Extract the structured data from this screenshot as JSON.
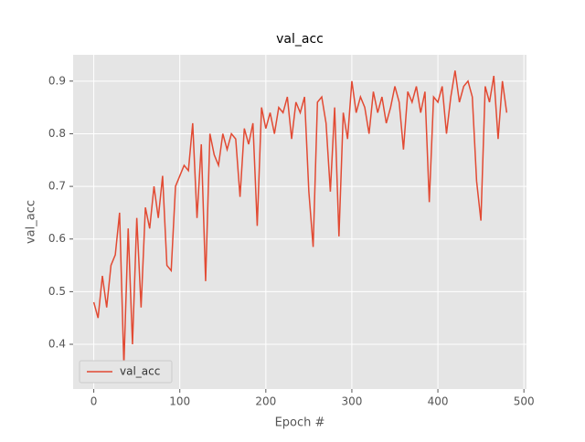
{
  "chart_data": {
    "type": "line",
    "title": "val_acc",
    "x_label": "Epoch #",
    "y_label": "val_acc",
    "x": [
      0,
      5,
      10,
      15,
      20,
      25,
      30,
      35,
      40,
      45,
      50,
      55,
      60,
      65,
      70,
      75,
      80,
      85,
      90,
      95,
      100,
      105,
      110,
      115,
      120,
      125,
      130,
      135,
      140,
      145,
      150,
      155,
      160,
      165,
      170,
      175,
      180,
      185,
      190,
      195,
      200,
      205,
      210,
      215,
      220,
      225,
      230,
      235,
      240,
      245,
      250,
      255,
      260,
      265,
      270,
      275,
      280,
      285,
      290,
      295,
      300,
      305,
      310,
      315,
      320,
      325,
      330,
      335,
      340,
      345,
      350,
      355,
      360,
      365,
      370,
      375,
      380,
      385,
      390,
      395,
      400,
      405,
      410,
      415,
      420,
      425,
      430,
      435,
      440,
      445,
      450,
      455,
      460,
      465,
      470,
      475,
      480
    ],
    "series": [
      {
        "name": "val_acc",
        "color": "#e24a33",
        "values": [
          0.48,
          0.45,
          0.53,
          0.47,
          0.55,
          0.57,
          0.65,
          0.36,
          0.62,
          0.4,
          0.64,
          0.47,
          0.66,
          0.62,
          0.7,
          0.64,
          0.72,
          0.55,
          0.54,
          0.7,
          0.72,
          0.74,
          0.73,
          0.82,
          0.64,
          0.78,
          0.52,
          0.8,
          0.76,
          0.74,
          0.8,
          0.77,
          0.8,
          0.79,
          0.68,
          0.81,
          0.78,
          0.82,
          0.625,
          0.85,
          0.81,
          0.84,
          0.8,
          0.85,
          0.84,
          0.87,
          0.79,
          0.86,
          0.84,
          0.87,
          0.69,
          0.585,
          0.86,
          0.87,
          0.82,
          0.69,
          0.85,
          0.605,
          0.84,
          0.79,
          0.9,
          0.84,
          0.87,
          0.85,
          0.8,
          0.88,
          0.84,
          0.87,
          0.82,
          0.85,
          0.89,
          0.86,
          0.77,
          0.88,
          0.86,
          0.89,
          0.84,
          0.88,
          0.67,
          0.87,
          0.86,
          0.89,
          0.8,
          0.87,
          0.92,
          0.86,
          0.89,
          0.9,
          0.87,
          0.71,
          0.635,
          0.89,
          0.86,
          0.91,
          0.79,
          0.9,
          0.84
        ]
      }
    ],
    "xlim": [
      -24,
      503
    ],
    "ylim": [
      0.315,
      0.95
    ],
    "xticks": [
      0,
      100,
      200,
      300,
      400,
      500
    ],
    "yticks": [
      0.4,
      0.5,
      0.6,
      0.7,
      0.8,
      0.9
    ],
    "grid": true,
    "legend": "lower left"
  }
}
